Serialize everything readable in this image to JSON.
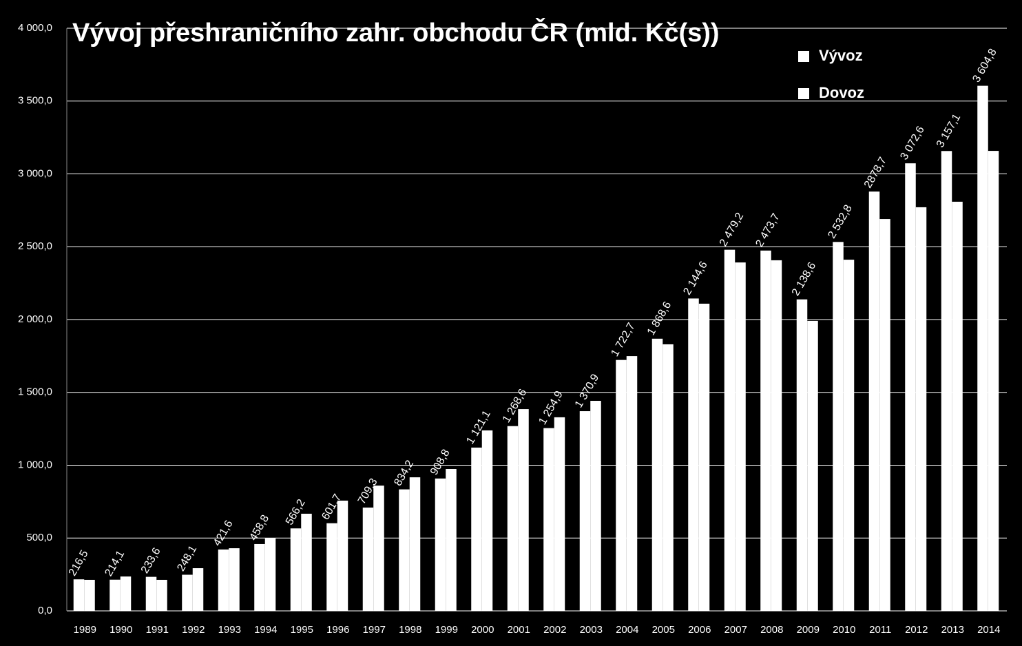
{
  "chart_data": {
    "type": "bar",
    "title": "Vývoj přeshraničního zahr. obchodu ČR (mld. Kč(s))",
    "categories": [
      "1989",
      "1990",
      "1991",
      "1992",
      "1993",
      "1994",
      "1995",
      "1996",
      "1997",
      "1998",
      "1999",
      "2000",
      "2001",
      "2002",
      "2003",
      "2004",
      "2005",
      "2006",
      "2007",
      "2008",
      "2009",
      "2010",
      "2011",
      "2012",
      "2013",
      "2014"
    ],
    "series": [
      {
        "name": "Vývoz",
        "color": "#ffffff",
        "values": [
          216.5,
          214.1,
          233.6,
          248.1,
          421.6,
          458.8,
          566.2,
          601.7,
          709.3,
          834.2,
          908.8,
          1121.1,
          1268.6,
          1254.9,
          1370.9,
          1722.7,
          1868.6,
          2144.6,
          2479.2,
          2473.7,
          2138.6,
          2532.8,
          2878.7,
          3072.6,
          3157.1,
          3604.8
        ],
        "value_labels": [
          "216,5",
          "214,1",
          "233,6",
          "248,1",
          "421,6",
          "458,8",
          "566,2",
          "601,7",
          "709,3",
          "834,2",
          "908,8",
          "1 121,1",
          "1 268,6",
          "1 254,9",
          "1 370,9",
          "1 722,7",
          "1 868,6",
          "2 144,6",
          "2 479,2",
          "2 473,7",
          "2 138,6",
          "2 532,8",
          "2878,7",
          "3 072,6",
          "3 157,1",
          "3 604,8"
        ]
      },
      {
        "name": "Dovoz",
        "color": "#ffffff",
        "values": [
          213,
          236,
          213,
          293,
          430,
          501,
          667,
          757,
          860,
          917,
          974,
          1239,
          1385,
          1329,
          1442,
          1749,
          1830,
          2109,
          2392,
          2407,
          1991,
          2411,
          2690,
          2771,
          2809,
          3158
        ]
      }
    ],
    "ylim": [
      0,
      4000
    ],
    "yticks": [
      {
        "value": 0,
        "label": "0,0"
      },
      {
        "value": 500,
        "label": "500,0"
      },
      {
        "value": 1000,
        "label": "1 000,0"
      },
      {
        "value": 1500,
        "label": "1 500,0"
      },
      {
        "value": 2000,
        "label": "2 000,0"
      },
      {
        "value": 2500,
        "label": "2 500,0"
      },
      {
        "value": 3000,
        "label": "3 000,0"
      },
      {
        "value": 3500,
        "label": "3 500,0"
      },
      {
        "value": 4000,
        "label": "4 000,0"
      }
    ],
    "grid": true,
    "legend": "top-right"
  }
}
